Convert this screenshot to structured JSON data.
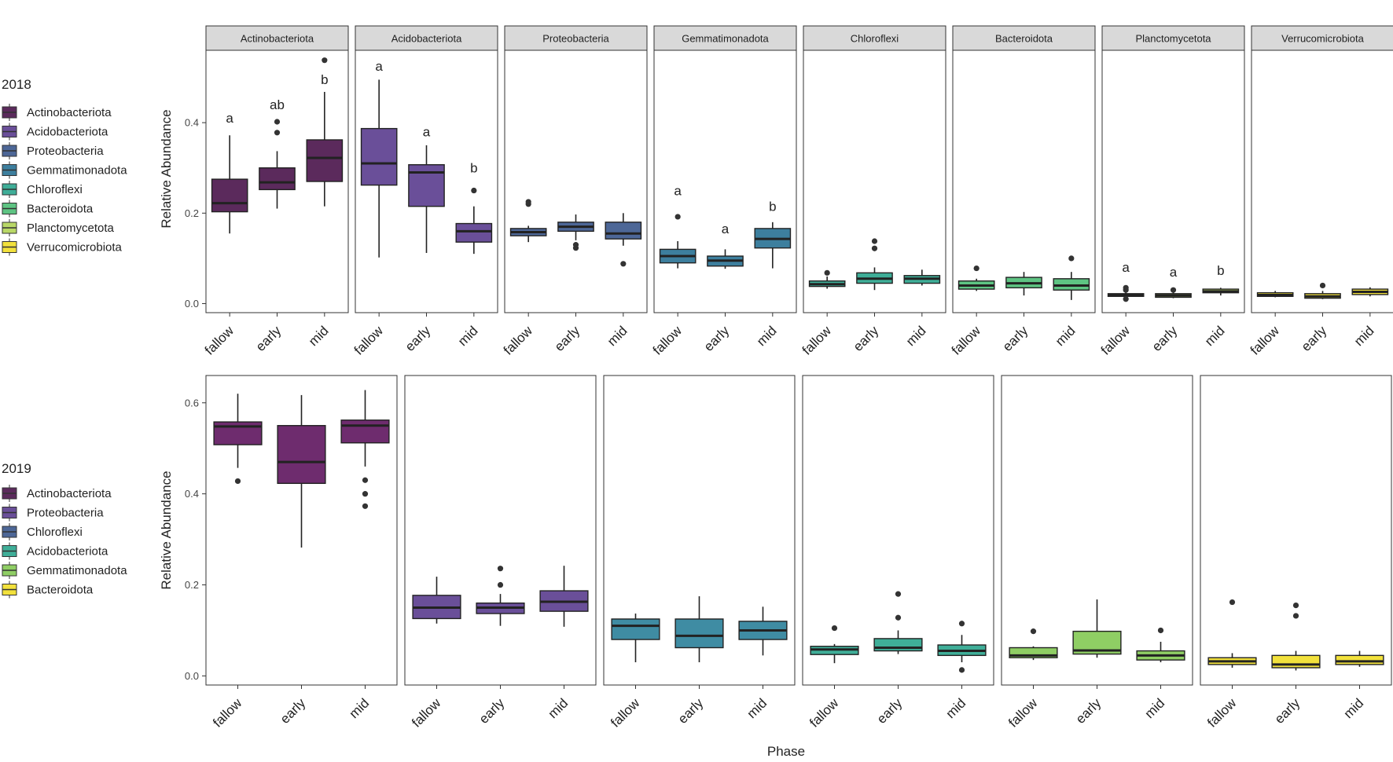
{
  "figure": {
    "x_axis_label": "Phase"
  },
  "chart_data": [
    {
      "type": "boxplot",
      "year": "2018",
      "ylabel": "Relative Abundance",
      "ylim": [
        -0.02,
        0.56
      ],
      "yticks": [
        "0.0",
        "0.2",
        "0.4"
      ],
      "yticks_values": [
        0.0,
        0.2,
        0.4
      ],
      "categories": [
        "fallow",
        "early",
        "mid"
      ],
      "legend_title": "2018",
      "legend": [
        {
          "label": "Actinobacteriota",
          "color": "#5b2a5c"
        },
        {
          "label": "Acidobacteriota",
          "color": "#6a4f99"
        },
        {
          "label": "Proteobacteria",
          "color": "#4d6797"
        },
        {
          "label": "Gemmatimonadota",
          "color": "#3d7f9e"
        },
        {
          "label": "Chloroflexi",
          "color": "#3fae98"
        },
        {
          "label": "Bacteroidota",
          "color": "#5ec483"
        },
        {
          "label": "Planctomycetota",
          "color": "#b9d867"
        },
        {
          "label": "Verrucomicrobiota",
          "color": "#f2e13c"
        }
      ],
      "panels": [
        {
          "title": "Actinobacteriota",
          "color": "#5b2a5c",
          "boxes": [
            {
              "min": 0.155,
              "q1": 0.203,
              "median": 0.222,
              "q3": 0.275,
              "max": 0.372,
              "outliers": []
            },
            {
              "min": 0.21,
              "q1": 0.252,
              "median": 0.268,
              "q3": 0.3,
              "max": 0.337,
              "outliers": [
                0.378,
                0.402
              ]
            },
            {
              "min": 0.215,
              "q1": 0.27,
              "median": 0.322,
              "q3": 0.362,
              "max": 0.468,
              "outliers": [
                0.538
              ]
            }
          ],
          "sig": [
            "a",
            "ab",
            "b"
          ],
          "sig_y": [
            0.4,
            0.43,
            0.485
          ]
        },
        {
          "title": "Acidobacteriota",
          "color": "#6a4f99",
          "boxes": [
            {
              "min": 0.102,
              "q1": 0.262,
              "median": 0.31,
              "q3": 0.387,
              "max": 0.495,
              "outliers": []
            },
            {
              "min": 0.112,
              "q1": 0.215,
              "median": 0.29,
              "q3": 0.307,
              "max": 0.35,
              "outliers": []
            },
            {
              "min": 0.11,
              "q1": 0.136,
              "median": 0.16,
              "q3": 0.177,
              "max": 0.215,
              "outliers": [
                0.25
              ]
            }
          ],
          "sig": [
            "a",
            "a",
            "b"
          ],
          "sig_y": [
            0.515,
            0.37,
            0.29
          ]
        },
        {
          "title": "Proteobacteria",
          "color": "#4d6797",
          "boxes": [
            {
              "min": 0.136,
              "q1": 0.15,
              "median": 0.158,
              "q3": 0.166,
              "max": 0.172,
              "outliers": [
                0.22,
                0.225
              ]
            },
            {
              "min": 0.14,
              "q1": 0.16,
              "median": 0.17,
              "q3": 0.18,
              "max": 0.197,
              "outliers": [
                0.123,
                0.13
              ]
            },
            {
              "min": 0.128,
              "q1": 0.143,
              "median": 0.155,
              "q3": 0.18,
              "max": 0.2,
              "outliers": [
                0.088
              ]
            }
          ],
          "sig": [],
          "sig_y": []
        },
        {
          "title": "Gemmatimonadota",
          "color": "#3d7f9e",
          "boxes": [
            {
              "min": 0.078,
              "q1": 0.09,
              "median": 0.105,
              "q3": 0.12,
              "max": 0.138,
              "outliers": [
                0.192
              ]
            },
            {
              "min": 0.077,
              "q1": 0.083,
              "median": 0.095,
              "q3": 0.105,
              "max": 0.12,
              "outliers": []
            },
            {
              "min": 0.078,
              "q1": 0.123,
              "median": 0.143,
              "q3": 0.166,
              "max": 0.18,
              "outliers": []
            }
          ],
          "sig": [
            "a",
            "a",
            "b"
          ],
          "sig_y": [
            0.24,
            0.155,
            0.205
          ]
        },
        {
          "title": "Chloroflexi",
          "color": "#3fae98",
          "boxes": [
            {
              "min": 0.033,
              "q1": 0.038,
              "median": 0.043,
              "q3": 0.05,
              "max": 0.06,
              "outliers": [
                0.068
              ]
            },
            {
              "min": 0.03,
              "q1": 0.045,
              "median": 0.055,
              "q3": 0.068,
              "max": 0.08,
              "outliers": [
                0.122,
                0.138
              ]
            },
            {
              "min": 0.04,
              "q1": 0.045,
              "median": 0.055,
              "q3": 0.062,
              "max": 0.075,
              "outliers": []
            }
          ],
          "sig": [],
          "sig_y": []
        },
        {
          "title": "Bacteroidota",
          "color": "#5ec483",
          "boxes": [
            {
              "min": 0.028,
              "q1": 0.032,
              "median": 0.04,
              "q3": 0.05,
              "max": 0.055,
              "outliers": [
                0.078
              ]
            },
            {
              "min": 0.018,
              "q1": 0.035,
              "median": 0.045,
              "q3": 0.058,
              "max": 0.07,
              "outliers": []
            },
            {
              "min": 0.008,
              "q1": 0.03,
              "median": 0.04,
              "q3": 0.055,
              "max": 0.07,
              "outliers": [
                0.1
              ]
            }
          ],
          "sig": [],
          "sig_y": []
        },
        {
          "title": "Planctomycetota",
          "color": "#b9d867",
          "boxes": [
            {
              "min": 0.012,
              "q1": 0.016,
              "median": 0.019,
              "q3": 0.022,
              "max": 0.026,
              "outliers": [
                0.03,
                0.035,
                0.01
              ]
            },
            {
              "min": 0.012,
              "q1": 0.014,
              "median": 0.018,
              "q3": 0.022,
              "max": 0.025,
              "outliers": [
                0.03
              ]
            },
            {
              "min": 0.018,
              "q1": 0.024,
              "median": 0.027,
              "q3": 0.032,
              "max": 0.035,
              "outliers": []
            }
          ],
          "sig": [
            "a",
            "a",
            "b"
          ],
          "sig_y": [
            0.07,
            0.06,
            0.063
          ]
        },
        {
          "title": "Verrucomicrobiota",
          "color": "#f2e13c",
          "boxes": [
            {
              "min": 0.014,
              "q1": 0.016,
              "median": 0.019,
              "q3": 0.024,
              "max": 0.028,
              "outliers": []
            },
            {
              "min": 0.01,
              "q1": 0.012,
              "median": 0.016,
              "q3": 0.022,
              "max": 0.028,
              "outliers": [
                0.04
              ]
            },
            {
              "min": 0.016,
              "q1": 0.02,
              "median": 0.026,
              "q3": 0.032,
              "max": 0.036,
              "outliers": []
            }
          ],
          "sig": [],
          "sig_y": []
        }
      ]
    },
    {
      "type": "boxplot",
      "year": "2019",
      "ylabel": "Relative Abundance",
      "ylim": [
        -0.02,
        0.66
      ],
      "yticks": [
        "0.0",
        "0.2",
        "0.4",
        "0.6"
      ],
      "yticks_values": [
        0.0,
        0.2,
        0.4,
        0.6
      ],
      "categories": [
        "fallow",
        "early",
        "mid"
      ],
      "legend_title": "2019",
      "legend": [
        {
          "label": "Actinobacteriota",
          "color": "#5b2a5c"
        },
        {
          "label": "Proteobacteria",
          "color": "#6a4f99"
        },
        {
          "label": "Chloroflexi",
          "color": "#4d6797"
        },
        {
          "label": "Acidobacteriota",
          "color": "#3fae98"
        },
        {
          "label": "Gemmatimonadota",
          "color": "#8fce64"
        },
        {
          "label": "Bacteroidota",
          "color": "#f2e13c"
        }
      ],
      "panels": [
        {
          "title": "",
          "color": "#6e2c6e",
          "boxes": [
            {
              "min": 0.457,
              "q1": 0.508,
              "median": 0.548,
              "q3": 0.558,
              "max": 0.62,
              "outliers": [
                0.428
              ]
            },
            {
              "min": 0.282,
              "q1": 0.423,
              "median": 0.47,
              "q3": 0.55,
              "max": 0.617,
              "outliers": []
            },
            {
              "min": 0.46,
              "q1": 0.512,
              "median": 0.55,
              "q3": 0.562,
              "max": 0.628,
              "outliers": [
                0.43,
                0.4,
                0.373
              ]
            }
          ],
          "sig": [],
          "sig_y": []
        },
        {
          "title": "",
          "color": "#6a4f99",
          "boxes": [
            {
              "min": 0.115,
              "q1": 0.126,
              "median": 0.15,
              "q3": 0.177,
              "max": 0.218,
              "outliers": []
            },
            {
              "min": 0.11,
              "q1": 0.137,
              "median": 0.15,
              "q3": 0.16,
              "max": 0.18,
              "outliers": [
                0.2,
                0.236
              ]
            },
            {
              "min": 0.108,
              "q1": 0.142,
              "median": 0.163,
              "q3": 0.187,
              "max": 0.242,
              "outliers": []
            }
          ],
          "sig": [],
          "sig_y": []
        },
        {
          "title": "",
          "color": "#3f8ca3",
          "boxes": [
            {
              "min": 0.03,
              "q1": 0.08,
              "median": 0.11,
              "q3": 0.125,
              "max": 0.137,
              "outliers": []
            },
            {
              "min": 0.03,
              "q1": 0.062,
              "median": 0.088,
              "q3": 0.125,
              "max": 0.175,
              "outliers": []
            },
            {
              "min": 0.045,
              "q1": 0.08,
              "median": 0.1,
              "q3": 0.12,
              "max": 0.152,
              "outliers": []
            }
          ],
          "sig": [],
          "sig_y": []
        },
        {
          "title": "",
          "color": "#3fae98",
          "boxes": [
            {
              "min": 0.028,
              "q1": 0.047,
              "median": 0.058,
              "q3": 0.065,
              "max": 0.07,
              "outliers": [
                0.105
              ]
            },
            {
              "min": 0.048,
              "q1": 0.055,
              "median": 0.062,
              "q3": 0.082,
              "max": 0.1,
              "outliers": [
                0.128,
                0.18
              ]
            },
            {
              "min": 0.03,
              "q1": 0.045,
              "median": 0.055,
              "q3": 0.068,
              "max": 0.09,
              "outliers": [
                0.115,
                0.013
              ]
            }
          ],
          "sig": [],
          "sig_y": []
        },
        {
          "title": "",
          "color": "#8fce64",
          "boxes": [
            {
              "min": 0.035,
              "q1": 0.04,
              "median": 0.045,
              "q3": 0.062,
              "max": 0.065,
              "outliers": [
                0.098
              ]
            },
            {
              "min": 0.04,
              "q1": 0.048,
              "median": 0.056,
              "q3": 0.098,
              "max": 0.168,
              "outliers": []
            },
            {
              "min": 0.03,
              "q1": 0.035,
              "median": 0.045,
              "q3": 0.055,
              "max": 0.075,
              "outliers": [
                0.1
              ]
            }
          ],
          "sig": [],
          "sig_y": []
        },
        {
          "title": "",
          "color": "#f2e13c",
          "boxes": [
            {
              "min": 0.018,
              "q1": 0.025,
              "median": 0.032,
              "q3": 0.04,
              "max": 0.05,
              "outliers": [
                0.162
              ]
            },
            {
              "min": 0.012,
              "q1": 0.018,
              "median": 0.025,
              "q3": 0.045,
              "max": 0.055,
              "outliers": [
                0.132,
                0.155
              ]
            },
            {
              "min": 0.02,
              "q1": 0.025,
              "median": 0.032,
              "q3": 0.045,
              "max": 0.055,
              "outliers": []
            }
          ],
          "sig": [],
          "sig_y": []
        }
      ]
    }
  ]
}
